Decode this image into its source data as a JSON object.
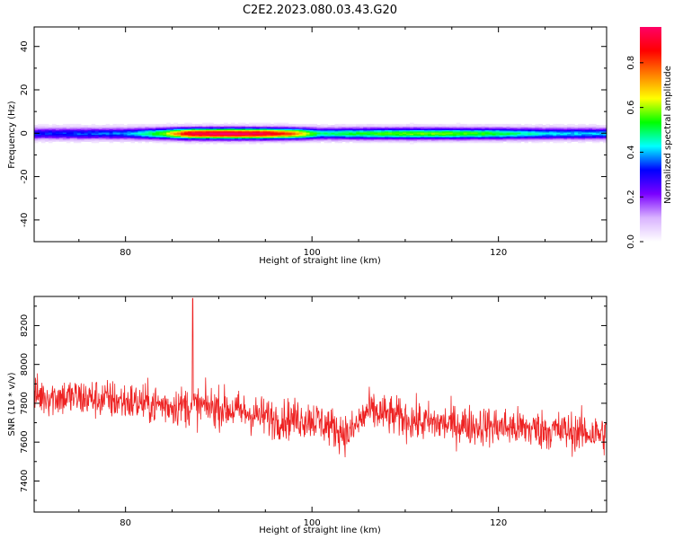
{
  "title": "C2E2.2023.080.03.43.G20",
  "chart_data": [
    {
      "type": "heatmap",
      "xlabel": "Height of straight line (km)",
      "ylabel": "Frequency (Hz)",
      "xlim": [
        70.2,
        131.6
      ],
      "ylim": [
        -50,
        49
      ],
      "xticks": [
        80,
        100,
        120
      ],
      "yticks": [
        -40,
        -20,
        0,
        20,
        40
      ],
      "colorbar": {
        "label": "Normalized spectral amplitude",
        "range": [
          0.0,
          0.96
        ],
        "ticks": [
          "0.0",
          "0.2",
          "0.4",
          "0.6",
          "0.8"
        ],
        "colormap": [
          "#ffffff",
          "#d9b3ff",
          "#7a00ff",
          "#0000ff",
          "#00ffff",
          "#00ff00",
          "#ffff00",
          "#ff8000",
          "#ff0000",
          "#ff0066"
        ]
      },
      "band": {
        "center_hz": 0,
        "halfwidth_hz": 4,
        "profile": [
          {
            "x": 70.2,
            "peak": 0.3
          },
          {
            "x": 80,
            "peak": 0.35
          },
          {
            "x": 84,
            "peak": 0.55
          },
          {
            "x": 87,
            "peak": 0.9
          },
          {
            "x": 91,
            "peak": 0.95
          },
          {
            "x": 95,
            "peak": 0.9
          },
          {
            "x": 98,
            "peak": 0.75
          },
          {
            "x": 101,
            "peak": 0.45
          },
          {
            "x": 105,
            "peak": 0.5
          },
          {
            "x": 110,
            "peak": 0.55
          },
          {
            "x": 115,
            "peak": 0.55
          },
          {
            "x": 120,
            "peak": 0.5
          },
          {
            "x": 125,
            "peak": 0.4
          },
          {
            "x": 131.6,
            "peak": 0.38
          }
        ]
      }
    },
    {
      "type": "line",
      "xlabel": "Height of straight line (km)",
      "ylabel": "SNR (10 * v/v)",
      "xlim": [
        70.2,
        131.6
      ],
      "ylim": [
        7240,
        8350
      ],
      "xticks": [
        80,
        100,
        120
      ],
      "yticks": [
        7400,
        7600,
        7800,
        8000,
        8200
      ],
      "line_color": "#ee2222",
      "trend": [
        {
          "x": 70.2,
          "y": 7840
        },
        {
          "x": 78,
          "y": 7820
        },
        {
          "x": 84,
          "y": 7790
        },
        {
          "x": 90,
          "y": 7780
        },
        {
          "x": 96,
          "y": 7720
        },
        {
          "x": 100,
          "y": 7720
        },
        {
          "x": 104,
          "y": 7640
        },
        {
          "x": 106,
          "y": 7760
        },
        {
          "x": 112,
          "y": 7700
        },
        {
          "x": 120,
          "y": 7680
        },
        {
          "x": 126,
          "y": 7660
        },
        {
          "x": 131.6,
          "y": 7640
        }
      ],
      "noise_amplitude": 170,
      "max_point": {
        "x": 87.2,
        "y": 8340
      }
    }
  ]
}
